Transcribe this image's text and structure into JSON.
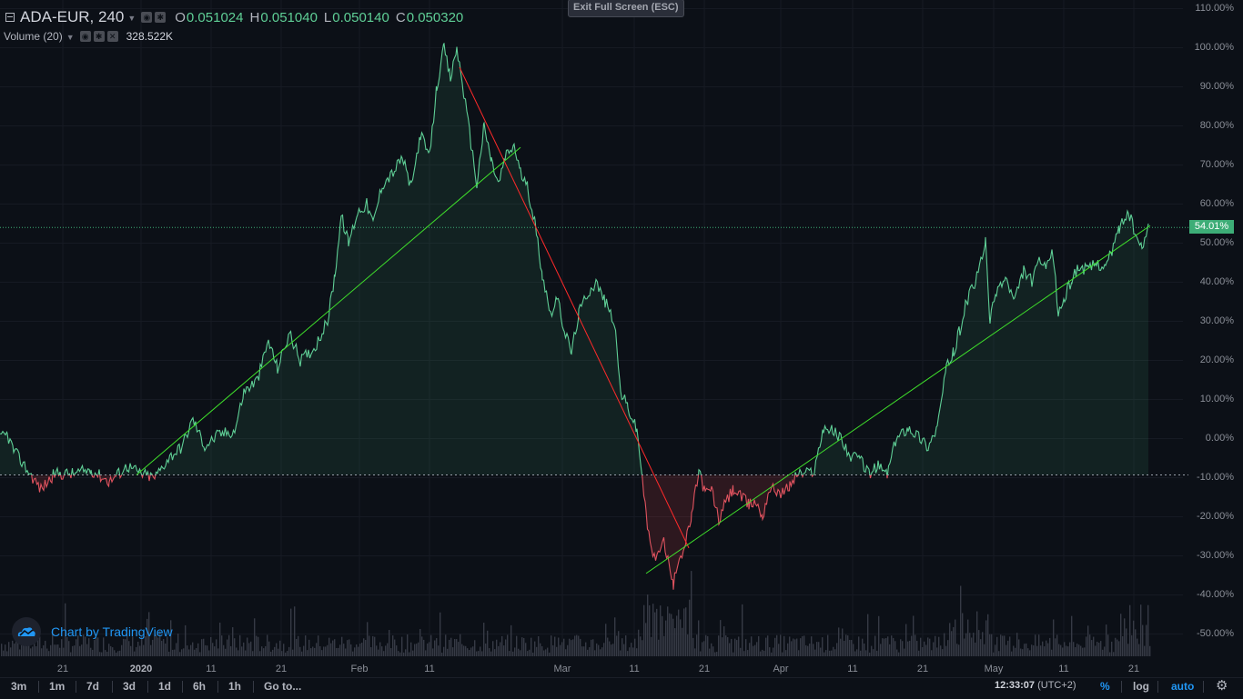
{
  "header": {
    "symbol": "ADA-EUR, 240",
    "ohlc": [
      {
        "key": "O",
        "value": "0.051024"
      },
      {
        "key": "H",
        "value": "0.051040"
      },
      {
        "key": "L",
        "value": "0.050140"
      },
      {
        "key": "C",
        "value": "0.050320"
      }
    ],
    "volume_label": "Volume (20)",
    "volume_value": "328.522K",
    "exit_fullscreen": "Exit Full Screen (ESC)"
  },
  "chart_data": {
    "type": "area",
    "ylabel_unit": "%",
    "ylim": [
      -55,
      112
    ],
    "y_ticks": [
      "110.00%",
      "100.00%",
      "90.00%",
      "80.00%",
      "70.00%",
      "60.00%",
      "50.00%",
      "40.00%",
      "30.00%",
      "20.00%",
      "10.00%",
      "0.00%",
      "-10.00%",
      "-20.00%",
      "-30.00%",
      "-40.00%",
      "-50.00%"
    ],
    "x_ticks": [
      {
        "label": "21",
        "bold": false
      },
      {
        "label": "2020",
        "bold": true
      },
      {
        "label": "11",
        "bold": false
      },
      {
        "label": "21",
        "bold": false
      },
      {
        "label": "Feb",
        "bold": false
      },
      {
        "label": "11",
        "bold": false
      },
      {
        "label": "Mar",
        "bold": false
      },
      {
        "label": "11",
        "bold": false
      },
      {
        "label": "21",
        "bold": false
      },
      {
        "label": "Apr",
        "bold": false
      },
      {
        "label": "11",
        "bold": false
      },
      {
        "label": "21",
        "bold": false
      },
      {
        "label": "May",
        "bold": false
      },
      {
        "label": "11",
        "bold": false
      },
      {
        "label": "21",
        "bold": false
      }
    ],
    "baseline_pct": -9.3,
    "current_value_label": "54.01%",
    "current_value_pct": 54.01,
    "colors": {
      "up": "#5fcf96",
      "down": "#e0535f",
      "trend": "#3fe02b",
      "trend_down": "#ff2a2a",
      "volume": "#363a45"
    },
    "series_keypoints_pct": [
      [
        0,
        0
      ],
      [
        8,
        1
      ],
      [
        15,
        -3
      ],
      [
        30,
        -8
      ],
      [
        45,
        -13
      ],
      [
        60,
        -9
      ],
      [
        80,
        -9
      ],
      [
        100,
        -8
      ],
      [
        120,
        -11
      ],
      [
        140,
        -7
      ],
      [
        155,
        -9
      ],
      [
        170,
        -10
      ],
      [
        185,
        -5
      ],
      [
        200,
        -2
      ],
      [
        212,
        5
      ],
      [
        225,
        -2
      ],
      [
        240,
        1
      ],
      [
        258,
        2
      ],
      [
        268,
        12
      ],
      [
        283,
        15
      ],
      [
        295,
        25
      ],
      [
        305,
        18
      ],
      [
        318,
        27
      ],
      [
        330,
        20
      ],
      [
        345,
        23
      ],
      [
        360,
        30
      ],
      [
        368,
        42
      ],
      [
        375,
        57
      ],
      [
        383,
        50
      ],
      [
        393,
        58
      ],
      [
        403,
        60
      ],
      [
        410,
        55
      ],
      [
        420,
        65
      ],
      [
        432,
        68
      ],
      [
        442,
        72
      ],
      [
        452,
        64
      ],
      [
        462,
        78
      ],
      [
        472,
        72
      ],
      [
        480,
        90
      ],
      [
        488,
        100
      ],
      [
        495,
        92
      ],
      [
        502,
        100
      ],
      [
        510,
        88
      ],
      [
        518,
        75
      ],
      [
        524,
        65
      ],
      [
        532,
        80
      ],
      [
        540,
        71
      ],
      [
        548,
        65
      ],
      [
        555,
        72
      ],
      [
        565,
        75
      ],
      [
        572,
        68
      ],
      [
        580,
        64
      ],
      [
        588,
        55
      ],
      [
        596,
        42
      ],
      [
        605,
        32
      ],
      [
        612,
        36
      ],
      [
        620,
        28
      ],
      [
        628,
        22
      ],
      [
        636,
        32
      ],
      [
        645,
        37
      ],
      [
        655,
        40
      ],
      [
        665,
        35
      ],
      [
        675,
        30
      ],
      [
        682,
        12
      ],
      [
        690,
        8
      ],
      [
        700,
        2
      ],
      [
        706,
        -10
      ],
      [
        710,
        -20
      ],
      [
        716,
        -29
      ],
      [
        722,
        -31
      ],
      [
        728,
        -25
      ],
      [
        735,
        -32
      ],
      [
        740,
        -38
      ],
      [
        745,
        -31
      ],
      [
        752,
        -28
      ],
      [
        760,
        -20
      ],
      [
        768,
        -8
      ],
      [
        775,
        -14
      ],
      [
        782,
        -13
      ],
      [
        790,
        -21
      ],
      [
        798,
        -16
      ],
      [
        806,
        -13
      ],
      [
        815,
        -15
      ],
      [
        823,
        -17
      ],
      [
        830,
        -16
      ],
      [
        838,
        -20
      ],
      [
        845,
        -13
      ],
      [
        852,
        -13
      ],
      [
        860,
        -14
      ],
      [
        868,
        -12
      ],
      [
        876,
        -9
      ],
      [
        885,
        -9
      ],
      [
        895,
        -8
      ],
      [
        905,
        3
      ],
      [
        915,
        2
      ],
      [
        925,
        0
      ],
      [
        935,
        -5
      ],
      [
        945,
        -5
      ],
      [
        955,
        -9
      ],
      [
        965,
        -7
      ],
      [
        975,
        -9
      ],
      [
        985,
        0
      ],
      [
        998,
        3
      ],
      [
        1008,
        1
      ],
      [
        1020,
        -2
      ],
      [
        1030,
        3
      ],
      [
        1040,
        18
      ],
      [
        1048,
        22
      ],
      [
        1055,
        28
      ],
      [
        1062,
        35
      ],
      [
        1072,
        40
      ],
      [
        1083,
        50
      ],
      [
        1088,
        30
      ],
      [
        1095,
        38
      ],
      [
        1105,
        41
      ],
      [
        1115,
        35
      ],
      [
        1125,
        43
      ],
      [
        1135,
        40
      ],
      [
        1142,
        46
      ],
      [
        1150,
        43
      ],
      [
        1157,
        48
      ],
      [
        1163,
        32
      ],
      [
        1170,
        36
      ],
      [
        1178,
        41
      ],
      [
        1185,
        44
      ],
      [
        1195,
        43
      ],
      [
        1205,
        45
      ],
      [
        1215,
        44
      ],
      [
        1222,
        48
      ],
      [
        1230,
        54
      ],
      [
        1240,
        58
      ],
      [
        1248,
        52
      ],
      [
        1255,
        48
      ],
      [
        1262,
        55
      ]
    ],
    "trend_lines_pct": [
      {
        "color": "green",
        "points": [
          [
            150,
            -9.3
          ],
          [
            572,
            74.5
          ]
        ]
      },
      {
        "color": "red",
        "points": [
          [
            505,
            95
          ],
          [
            757,
            -28
          ]
        ]
      },
      {
        "color": "green",
        "points": [
          [
            710,
            -34.5
          ],
          [
            1264,
            54.5
          ]
        ]
      }
    ]
  },
  "bottom_toolbar": {
    "timeframes": [
      "3m",
      "1m",
      "7d",
      "3d",
      "1d",
      "6h",
      "1h",
      "Go to..."
    ],
    "time": "12:33:07",
    "timezone": "(UTC+2)",
    "percent": "%",
    "log": "log",
    "auto": "auto",
    "percent_color": "#2196f3",
    "auto_color": "#2196f3"
  },
  "branding": {
    "text": "Chart by TradingView",
    "icon": "tradingview-cloud-icon"
  }
}
